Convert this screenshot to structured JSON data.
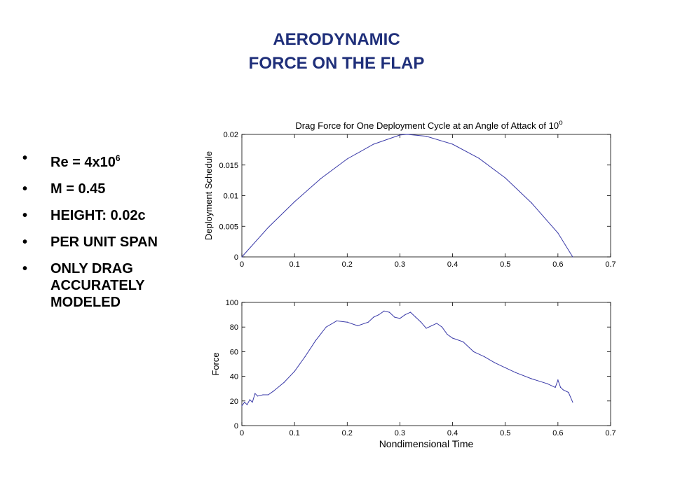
{
  "slide": {
    "title_line1": "AERODYNAMIC",
    "title_line2": "FORCE ON THE FLAP",
    "bullet_marker": "•",
    "bullets": [
      {
        "main": "Re  = 4x10",
        "sup": "6"
      },
      {
        "main": "M = 0.45"
      },
      {
        "main": "HEIGHT:  0.02c"
      },
      {
        "main": "PER UNIT SPAN"
      },
      {
        "lines": [
          "ONLY DRAG",
          "ACCURATELY",
          "MODELED"
        ]
      }
    ]
  },
  "chart_data": [
    {
      "type": "line",
      "title": "Drag Force for One Deployment Cycle at an Angle of Attack of 10",
      "title_sup": "o",
      "xlabel": "",
      "ylabel": "Deployment Schedule",
      "xlim": [
        0,
        0.7
      ],
      "ylim": [
        0,
        0.02
      ],
      "xticks": [
        "0",
        "0.1",
        "0.2",
        "0.3",
        "0.4",
        "0.5",
        "0.6",
        "0.7"
      ],
      "yticks": [
        "0",
        "0.005",
        "0.01",
        "0.015",
        "0.02"
      ],
      "grid": false,
      "line_color": "#3a3aa8",
      "x": [
        0,
        0.05,
        0.1,
        0.15,
        0.2,
        0.25,
        0.3,
        0.314,
        0.35,
        0.4,
        0.45,
        0.5,
        0.55,
        0.6,
        0.628
      ],
      "y": [
        0,
        0.0048,
        0.009,
        0.0128,
        0.016,
        0.0184,
        0.0199,
        0.02,
        0.0197,
        0.0184,
        0.0161,
        0.0129,
        0.0088,
        0.0039,
        0
      ]
    },
    {
      "type": "line",
      "title": "",
      "xlabel": "Nondimensional Time",
      "ylabel": "Force",
      "xlim": [
        0,
        0.7
      ],
      "ylim": [
        0,
        100
      ],
      "xticks": [
        "0",
        "0.1",
        "0.2",
        "0.3",
        "0.4",
        "0.5",
        "0.6",
        "0.7"
      ],
      "yticks": [
        "0",
        "20",
        "40",
        "60",
        "80",
        "100"
      ],
      "grid": false,
      "line_color": "#3a3aa8",
      "x": [
        0,
        0.005,
        0.01,
        0.015,
        0.02,
        0.025,
        0.03,
        0.04,
        0.05,
        0.06,
        0.08,
        0.1,
        0.12,
        0.14,
        0.16,
        0.18,
        0.2,
        0.22,
        0.24,
        0.25,
        0.26,
        0.27,
        0.28,
        0.29,
        0.3,
        0.31,
        0.32,
        0.33,
        0.34,
        0.35,
        0.36,
        0.37,
        0.38,
        0.39,
        0.4,
        0.42,
        0.44,
        0.46,
        0.48,
        0.5,
        0.52,
        0.55,
        0.58,
        0.595,
        0.6,
        0.605,
        0.61,
        0.62,
        0.628
      ],
      "y": [
        16,
        19,
        17,
        21,
        19,
        26,
        24,
        25,
        25,
        28,
        35,
        44,
        56,
        69,
        80,
        85,
        84,
        81,
        84,
        88,
        90,
        93,
        92,
        88,
        87,
        90,
        92,
        88,
        84,
        79,
        81,
        83,
        80,
        74,
        71,
        68,
        60,
        56,
        51,
        47,
        43,
        38,
        34,
        31,
        37,
        31,
        29,
        27,
        19
      ]
    }
  ]
}
